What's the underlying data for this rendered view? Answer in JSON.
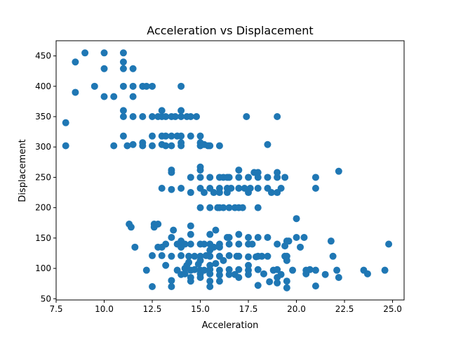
{
  "chart_data": {
    "type": "scatter",
    "title": "Acceleration vs Displacement",
    "xlabel": "Acceleration",
    "ylabel": "Displacement",
    "xlim": [
      7.5,
      25.6
    ],
    "ylim": [
      48,
      475
    ],
    "xticks": [
      7.5,
      10.0,
      12.5,
      15.0,
      17.5,
      20.0,
      22.5,
      25.0
    ],
    "xtick_labels": [
      "7.5",
      "10.0",
      "12.5",
      "15.0",
      "17.5",
      "20.0",
      "22.5",
      "25.0"
    ],
    "yticks": [
      50,
      100,
      150,
      200,
      250,
      300,
      350,
      400,
      450
    ],
    "ytick_labels": [
      "50",
      "100",
      "150",
      "200",
      "250",
      "300",
      "350",
      "400",
      "450"
    ],
    "grid": false,
    "marker_color": "#1f77b4",
    "points": [
      [
        8.0,
        340
      ],
      [
        8.0,
        302
      ],
      [
        8.5,
        440
      ],
      [
        8.5,
        390
      ],
      [
        9.0,
        455
      ],
      [
        9.5,
        400
      ],
      [
        10.0,
        455
      ],
      [
        10.0,
        429
      ],
      [
        10.0,
        383
      ],
      [
        10.5,
        383
      ],
      [
        10.5,
        302
      ],
      [
        11.0,
        455
      ],
      [
        11.0,
        440
      ],
      [
        11.0,
        429
      ],
      [
        11.0,
        400
      ],
      [
        11.0,
        360
      ],
      [
        11.0,
        350
      ],
      [
        11.0,
        318
      ],
      [
        11.2,
        302
      ],
      [
        11.5,
        429
      ],
      [
        11.5,
        400
      ],
      [
        11.5,
        383
      ],
      [
        11.5,
        350
      ],
      [
        11.5,
        304
      ],
      [
        11.3,
        173
      ],
      [
        11.4,
        168
      ],
      [
        11.6,
        135
      ],
      [
        12.0,
        400
      ],
      [
        12.0,
        350
      ],
      [
        12.0,
        307
      ],
      [
        12.0,
        302
      ],
      [
        12.2,
        400
      ],
      [
        12.5,
        400
      ],
      [
        12.5,
        350
      ],
      [
        12.5,
        318
      ],
      [
        12.5,
        302
      ],
      [
        12.2,
        97
      ],
      [
        12.5,
        70
      ],
      [
        12.5,
        121
      ],
      [
        12.6,
        173
      ],
      [
        12.6,
        168
      ],
      [
        12.8,
        350
      ],
      [
        13.0,
        360
      ],
      [
        13.0,
        350
      ],
      [
        13.0,
        318
      ],
      [
        13.0,
        304
      ],
      [
        13.0,
        232
      ],
      [
        12.8,
        135
      ],
      [
        13.0,
        135
      ],
      [
        12.8,
        173
      ],
      [
        13.0,
        121
      ],
      [
        13.2,
        350
      ],
      [
        13.2,
        318
      ],
      [
        13.2,
        302
      ],
      [
        13.5,
        350
      ],
      [
        13.5,
        318
      ],
      [
        13.5,
        302
      ],
      [
        13.5,
        262
      ],
      [
        13.5,
        258
      ],
      [
        13.5,
        230
      ],
      [
        13.2,
        105
      ],
      [
        13.2,
        140
      ],
      [
        13.5,
        80
      ],
      [
        13.5,
        70
      ],
      [
        13.5,
        151
      ],
      [
        13.5,
        120
      ],
      [
        13.6,
        163
      ],
      [
        13.7,
        350
      ],
      [
        13.8,
        318
      ],
      [
        14.0,
        400
      ],
      [
        14.0,
        360
      ],
      [
        14.0,
        350
      ],
      [
        14.0,
        318
      ],
      [
        14.0,
        307
      ],
      [
        14.0,
        302
      ],
      [
        14.0,
        232
      ],
      [
        13.8,
        140
      ],
      [
        13.8,
        97
      ],
      [
        14.0,
        90
      ],
      [
        14.0,
        121
      ],
      [
        14.0,
        145
      ],
      [
        14.0,
        135
      ],
      [
        14.2,
        100
      ],
      [
        14.2,
        91
      ],
      [
        14.2,
        140
      ],
      [
        14.3,
        350
      ],
      [
        14.5,
        350
      ],
      [
        14.5,
        318
      ],
      [
        14.5,
        250
      ],
      [
        14.5,
        225
      ],
      [
        14.5,
        156
      ],
      [
        14.5,
        170
      ],
      [
        14.4,
        120
      ],
      [
        14.4,
        110
      ],
      [
        14.3,
        105
      ],
      [
        14.5,
        97
      ],
      [
        14.5,
        85
      ],
      [
        14.5,
        79
      ],
      [
        14.5,
        140
      ],
      [
        14.7,
        98
      ],
      [
        14.7,
        120
      ],
      [
        14.8,
        350
      ],
      [
        15.0,
        318
      ],
      [
        15.0,
        307
      ],
      [
        15.0,
        302
      ],
      [
        15.0,
        267
      ],
      [
        15.0,
        262
      ],
      [
        15.0,
        250
      ],
      [
        15.0,
        232
      ],
      [
        15.0,
        200
      ],
      [
        15.0,
        140
      ],
      [
        15.0,
        120
      ],
      [
        15.0,
        113
      ],
      [
        15.0,
        97
      ],
      [
        15.0,
        91
      ],
      [
        15.0,
        85
      ],
      [
        14.9,
        107
      ],
      [
        15.2,
        304
      ],
      [
        15.2,
        225
      ],
      [
        15.2,
        140
      ],
      [
        15.2,
        97
      ],
      [
        15.3,
        121
      ],
      [
        15.4,
        302
      ],
      [
        15.5,
        302
      ],
      [
        15.5,
        250
      ],
      [
        15.5,
        232
      ],
      [
        15.5,
        200
      ],
      [
        15.5,
        156
      ],
      [
        15.5,
        140
      ],
      [
        15.5,
        130
      ],
      [
        15.5,
        120
      ],
      [
        15.5,
        105
      ],
      [
        15.5,
        98
      ],
      [
        15.5,
        91
      ],
      [
        15.5,
        79
      ],
      [
        15.5,
        70
      ],
      [
        15.7,
        225
      ],
      [
        15.7,
        135
      ],
      [
        15.8,
        163
      ],
      [
        15.8,
        108
      ],
      [
        15.9,
        200
      ],
      [
        16.0,
        302
      ],
      [
        16.0,
        250
      ],
      [
        16.0,
        232
      ],
      [
        16.0,
        225
      ],
      [
        16.0,
        200
      ],
      [
        16.0,
        140
      ],
      [
        16.0,
        135
      ],
      [
        16.0,
        120
      ],
      [
        16.0,
        97
      ],
      [
        16.0,
        89
      ],
      [
        16.0,
        79
      ],
      [
        16.2,
        250
      ],
      [
        16.2,
        200
      ],
      [
        16.2,
        113
      ],
      [
        16.4,
        250
      ],
      [
        16.4,
        232
      ],
      [
        16.4,
        225
      ],
      [
        16.4,
        151
      ],
      [
        16.5,
        250
      ],
      [
        16.5,
        200
      ],
      [
        16.5,
        151
      ],
      [
        16.5,
        140
      ],
      [
        16.5,
        121
      ],
      [
        16.5,
        98
      ],
      [
        16.5,
        90
      ],
      [
        16.6,
        232
      ],
      [
        16.8,
        200
      ],
      [
        16.8,
        90
      ],
      [
        16.9,
        120
      ],
      [
        17.0,
        262
      ],
      [
        17.0,
        250
      ],
      [
        17.0,
        232
      ],
      [
        17.0,
        200
      ],
      [
        17.0,
        156
      ],
      [
        17.0,
        140
      ],
      [
        17.0,
        120
      ],
      [
        17.0,
        98
      ],
      [
        17.0,
        85
      ],
      [
        17.2,
        200
      ],
      [
        17.3,
        232
      ],
      [
        17.4,
        350
      ],
      [
        17.5,
        250
      ],
      [
        17.5,
        225
      ],
      [
        17.5,
        151
      ],
      [
        17.5,
        140
      ],
      [
        17.5,
        119
      ],
      [
        17.5,
        105
      ],
      [
        17.5,
        97
      ],
      [
        17.5,
        90
      ],
      [
        17.6,
        232
      ],
      [
        17.7,
        140
      ],
      [
        17.8,
        258
      ],
      [
        17.9,
        119
      ],
      [
        18.0,
        258
      ],
      [
        18.0,
        250
      ],
      [
        18.0,
        232
      ],
      [
        18.0,
        200
      ],
      [
        18.0,
        151
      ],
      [
        18.0,
        120
      ],
      [
        18.0,
        98
      ],
      [
        18.0,
        72
      ],
      [
        18.2,
        120
      ],
      [
        18.3,
        91
      ],
      [
        18.5,
        304
      ],
      [
        18.5,
        250
      ],
      [
        18.5,
        232
      ],
      [
        18.5,
        151
      ],
      [
        18.5,
        120
      ],
      [
        18.6,
        78
      ],
      [
        18.7,
        225
      ],
      [
        18.8,
        97
      ],
      [
        19.0,
        350
      ],
      [
        19.0,
        258
      ],
      [
        19.0,
        250
      ],
      [
        19.0,
        225
      ],
      [
        19.0,
        140
      ],
      [
        19.0,
        98
      ],
      [
        19.0,
        85
      ],
      [
        19.0,
        76
      ],
      [
        19.2,
        232
      ],
      [
        19.2,
        90
      ],
      [
        19.4,
        250
      ],
      [
        19.4,
        120
      ],
      [
        19.4,
        137
      ],
      [
        19.5,
        145
      ],
      [
        19.5,
        120
      ],
      [
        19.5,
        113
      ],
      [
        19.5,
        79
      ],
      [
        19.5,
        68
      ],
      [
        19.6,
        145
      ],
      [
        19.8,
        97
      ],
      [
        20.0,
        182
      ],
      [
        20.0,
        151
      ],
      [
        20.2,
        135
      ],
      [
        20.4,
        151
      ],
      [
        20.5,
        97
      ],
      [
        20.5,
        91
      ],
      [
        20.7,
        98
      ],
      [
        21.0,
        250
      ],
      [
        21.0,
        232
      ],
      [
        21.0,
        97
      ],
      [
        21.0,
        71
      ],
      [
        21.5,
        90
      ],
      [
        21.8,
        145
      ],
      [
        21.9,
        120
      ],
      [
        22.1,
        97
      ],
      [
        22.2,
        260
      ],
      [
        22.2,
        85
      ],
      [
        23.5,
        97
      ],
      [
        23.7,
        91
      ],
      [
        24.6,
        97
      ],
      [
        24.8,
        140
      ]
    ]
  }
}
